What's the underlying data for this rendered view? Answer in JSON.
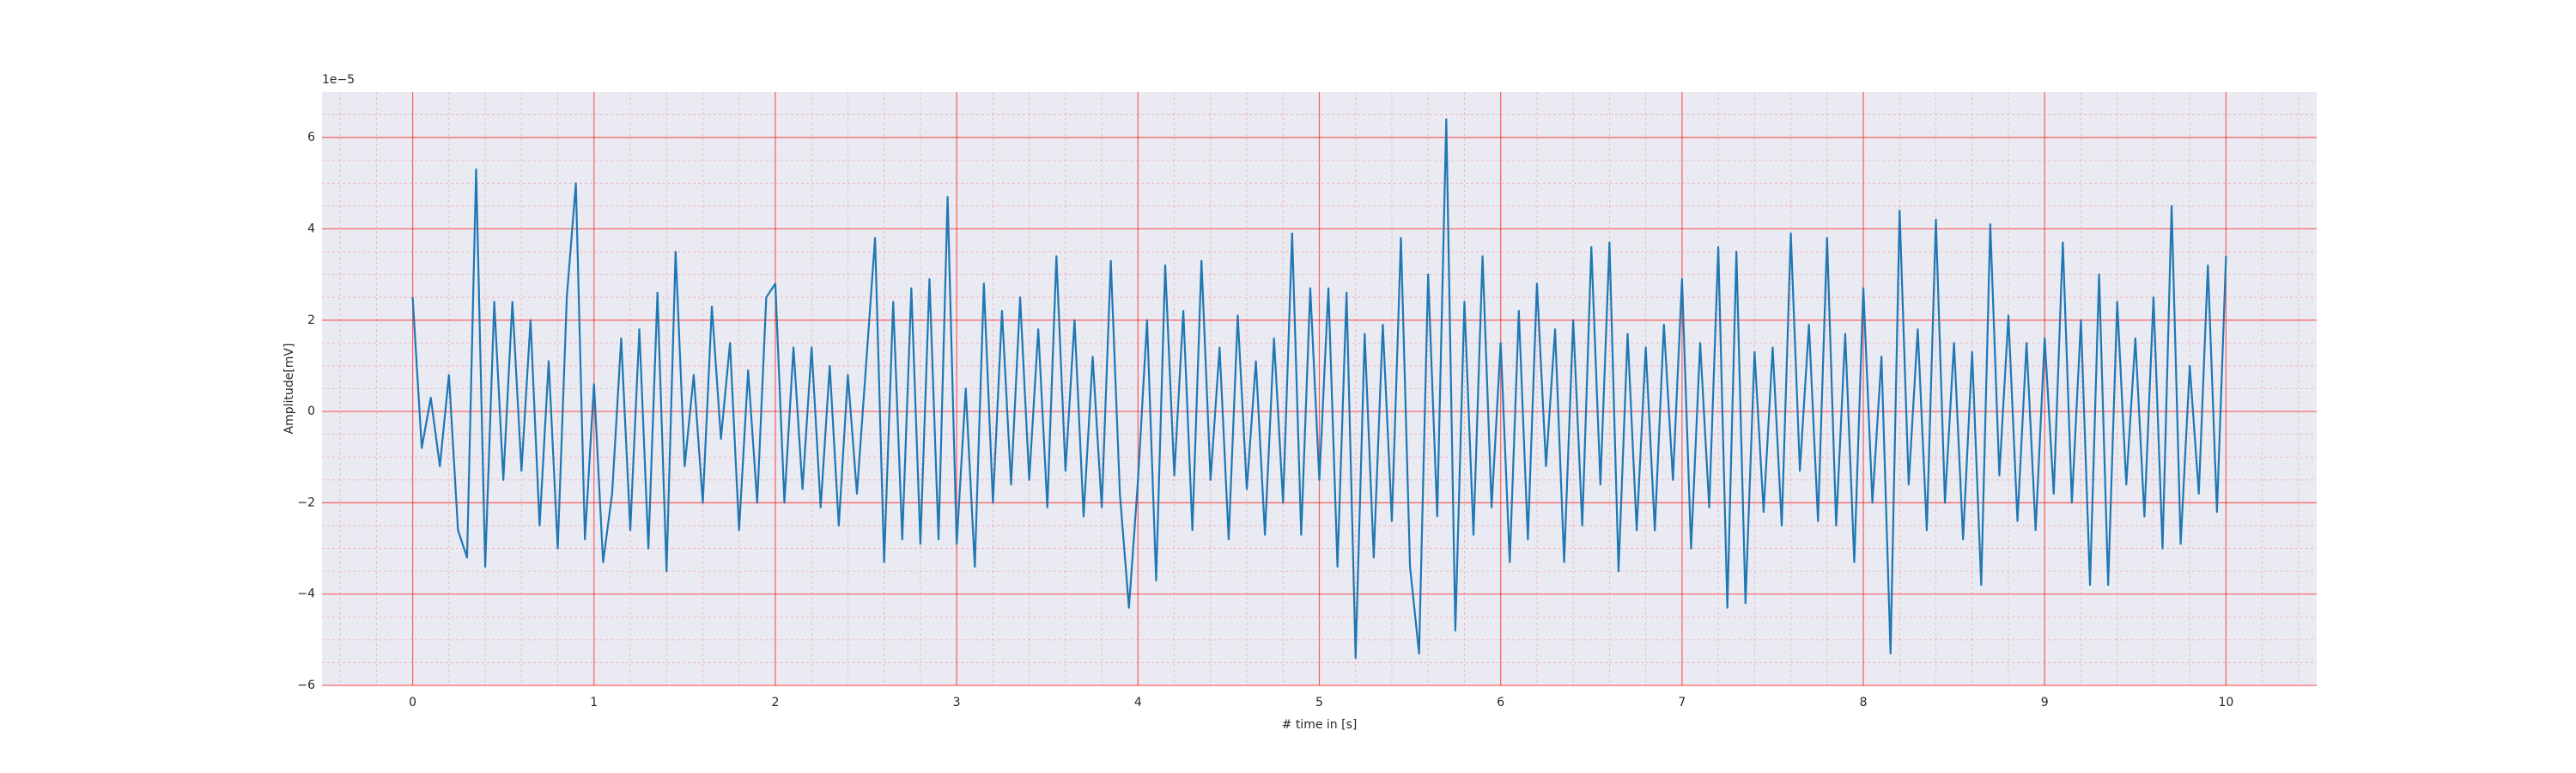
{
  "chart_data": {
    "type": "line",
    "xlabel": "# time in [s]",
    "ylabel": "Amplitude[mV]",
    "y_offset_text": "1e−5",
    "xlim": [
      -0.5,
      10.5
    ],
    "ylim": [
      -6,
      7
    ],
    "xticks": [
      0,
      1,
      2,
      3,
      4,
      5,
      6,
      7,
      8,
      9,
      10
    ],
    "yticks": [
      {
        "value": -6,
        "label": "−6"
      },
      {
        "value": -4,
        "label": "−4"
      },
      {
        "value": -2,
        "label": "−2"
      },
      0,
      2,
      4,
      6
    ],
    "xminorticks": [
      -0.4,
      -0.2,
      0.2,
      0.4,
      0.6,
      0.8,
      1.2,
      1.4,
      1.6,
      1.8,
      2.2,
      2.4,
      2.6,
      2.8,
      3.2,
      3.4,
      3.6,
      3.8,
      4.2,
      4.4,
      4.6,
      4.8,
      5.2,
      5.4,
      5.6,
      5.8,
      6.2,
      6.4,
      6.6,
      6.8,
      7.2,
      7.4,
      7.6,
      7.8,
      8.2,
      8.4,
      8.6,
      8.8,
      9.2,
      9.4,
      9.6,
      9.8,
      10.2,
      10.4
    ],
    "yminorticks": [
      -5.5,
      -5,
      -4.5,
      -3.5,
      -3,
      -2.5,
      -1.5,
      -1,
      -0.5,
      0.5,
      1,
      1.5,
      2.5,
      3,
      3.5,
      4.5,
      5,
      5.5,
      6.5
    ],
    "grid": true,
    "minor_grid": true,
    "grid_color": "#ff0000",
    "background": "#eaeaf2",
    "x": [
      0,
      0.05,
      0.1,
      0.15,
      0.2,
      0.25,
      0.3,
      0.35,
      0.4,
      0.45,
      0.5,
      0.55,
      0.6,
      0.65,
      0.7,
      0.75,
      0.8,
      0.85,
      0.9,
      0.95,
      1,
      1.05,
      1.1,
      1.15,
      1.2,
      1.25,
      1.3,
      1.35,
      1.4,
      1.45,
      1.5,
      1.55,
      1.6,
      1.65,
      1.7,
      1.75,
      1.8,
      1.85,
      1.9,
      1.95,
      2,
      2.05,
      2.1,
      2.15,
      2.2,
      2.25,
      2.3,
      2.35,
      2.4,
      2.45,
      2.5,
      2.55,
      2.6,
      2.65,
      2.7,
      2.75,
      2.8,
      2.85,
      2.9,
      2.95,
      3,
      3.05,
      3.1,
      3.15,
      3.2,
      3.25,
      3.3,
      3.35,
      3.4,
      3.45,
      3.5,
      3.55,
      3.6,
      3.65,
      3.7,
      3.75,
      3.8,
      3.85,
      3.9,
      3.95,
      4,
      4.05,
      4.1,
      4.15,
      4.2,
      4.25,
      4.3,
      4.35,
      4.4,
      4.45,
      4.5,
      4.55,
      4.6,
      4.65,
      4.7,
      4.75,
      4.8,
      4.85,
      4.9,
      4.95,
      5,
      5.05,
      5.1,
      5.15,
      5.2,
      5.25,
      5.3,
      5.35,
      5.4,
      5.45,
      5.5,
      5.55,
      5.6,
      5.65,
      5.7,
      5.75,
      5.8,
      5.85,
      5.9,
      5.95,
      6,
      6.05,
      6.1,
      6.15,
      6.2,
      6.25,
      6.3,
      6.35,
      6.4,
      6.45,
      6.5,
      6.55,
      6.6,
      6.65,
      6.7,
      6.75,
      6.8,
      6.85,
      6.9,
      6.95,
      7,
      7.05,
      7.1,
      7.15,
      7.2,
      7.25,
      7.3,
      7.35,
      7.4,
      7.45,
      7.5,
      7.55,
      7.6,
      7.65,
      7.7,
      7.75,
      7.8,
      7.85,
      7.9,
      7.95,
      8,
      8.05,
      8.1,
      8.15,
      8.2,
      8.25,
      8.3,
      8.35,
      8.4,
      8.45,
      8.5,
      8.55,
      8.6,
      8.65,
      8.7,
      8.75,
      8.8,
      8.85,
      8.9,
      8.95,
      9,
      9.05,
      9.1,
      9.15,
      9.2,
      9.25,
      9.3,
      9.35,
      9.4,
      9.45,
      9.5,
      9.55,
      9.6,
      9.65,
      9.7,
      9.75,
      9.8,
      9.85,
      9.9,
      9.95,
      10
    ],
    "series": [
      {
        "color": "#1f77b4",
        "values": [
          2.5,
          -0.8,
          0.3,
          -1.2,
          0.8,
          -2.6,
          -3.2,
          5.3,
          -3.4,
          2.4,
          -1.5,
          2.4,
          -1.3,
          2.0,
          -2.5,
          1.1,
          -3.0,
          2.5,
          5.0,
          -2.8,
          0.6,
          -3.3,
          -1.8,
          1.6,
          -2.6,
          1.8,
          -3.0,
          2.6,
          -3.5,
          3.5,
          -1.2,
          0.8,
          -2.0,
          2.3,
          -0.6,
          1.5,
          -2.6,
          0.9,
          -2.0,
          2.5,
          2.8,
          -2.0,
          1.4,
          -1.7,
          1.4,
          -2.1,
          1.0,
          -2.5,
          0.8,
          -1.8,
          1.0,
          3.8,
          -3.3,
          2.4,
          -2.8,
          2.7,
          -2.9,
          2.9,
          -2.8,
          4.7,
          -2.9,
          0.5,
          -3.4,
          2.8,
          -2.0,
          2.2,
          -1.6,
          2.5,
          -1.5,
          1.8,
          -2.1,
          3.4,
          -1.3,
          2.0,
          -2.3,
          1.2,
          -2.1,
          3.3,
          -1.8,
          -4.3,
          -1.5,
          2.0,
          -3.7,
          3.2,
          -1.4,
          2.2,
          -2.6,
          3.3,
          -1.5,
          1.4,
          -2.8,
          2.1,
          -1.7,
          1.1,
          -2.7,
          1.6,
          -2.0,
          3.9,
          -2.7,
          2.7,
          -1.5,
          2.7,
          -3.4,
          2.6,
          -5.4,
          1.7,
          -3.2,
          1.9,
          -2.4,
          3.8,
          -3.4,
          -5.3,
          3.0,
          -2.3,
          6.4,
          -4.8,
          2.4,
          -2.7,
          3.4,
          -2.1,
          1.5,
          -3.3,
          2.2,
          -2.8,
          2.8,
          -1.2,
          1.8,
          -3.3,
          2.0,
          -2.5,
          3.6,
          -1.6,
          3.7,
          -3.5,
          1.7,
          -2.6,
          1.4,
          -2.6,
          1.9,
          -1.5,
          2.9,
          -3.0,
          1.5,
          -2.1,
          3.6,
          -4.3,
          3.5,
          -4.2,
          1.3,
          -2.2,
          1.4,
          -2.5,
          3.9,
          -1.3,
          1.9,
          -2.4,
          3.8,
          -2.5,
          1.7,
          -3.3,
          2.7,
          -2.0,
          1.2,
          -5.3,
          4.4,
          -1.6,
          1.8,
          -2.6,
          4.2,
          -2.0,
          1.5,
          -2.8,
          1.3,
          -3.8,
          4.1,
          -1.4,
          2.1,
          -2.4,
          1.5,
          -2.6,
          1.6,
          -1.8,
          3.7,
          -2.0,
          2.0,
          -3.8,
          3.0,
          -3.8,
          2.4,
          -1.6,
          1.6,
          -2.3,
          2.5,
          -3.0,
          4.5,
          -2.9,
          1.0,
          -1.8,
          3.2,
          -2.2,
          3.4
        ]
      }
    ]
  }
}
